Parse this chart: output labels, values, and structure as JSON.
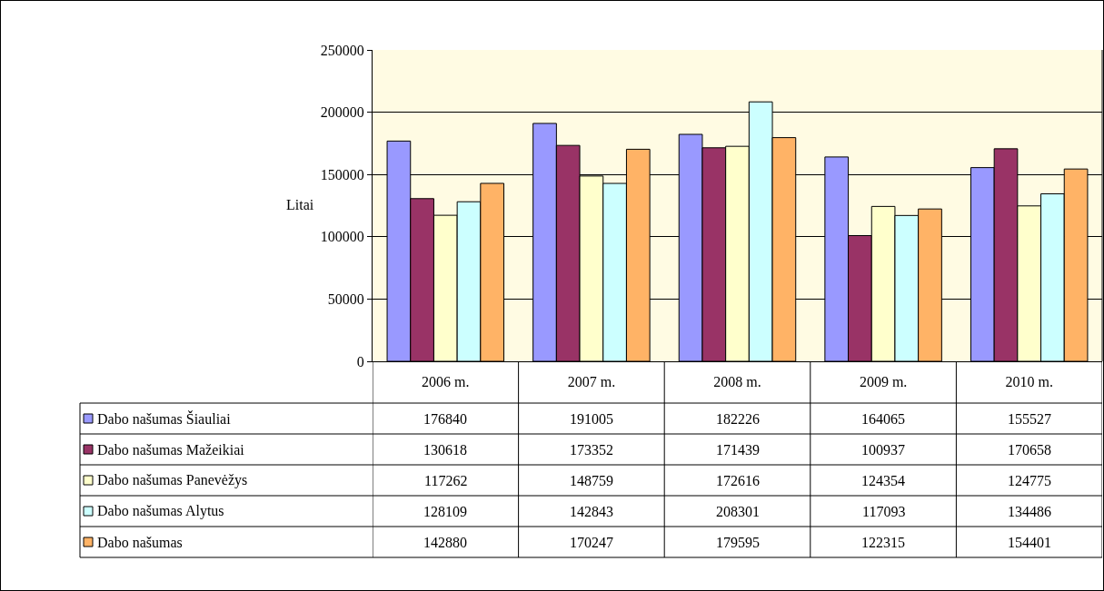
{
  "chart_data": {
    "type": "bar",
    "ylabel": "Litai",
    "categories": [
      "2006 m.",
      "2007 m.",
      "2008 m.",
      "2009 m.",
      "2010 m."
    ],
    "series": [
      {
        "name": "Dabo našumas Šiauliai",
        "color": "#9999ff",
        "values": [
          176840,
          191005,
          182226,
          164065,
          155527
        ]
      },
      {
        "name": "Dabo našumas Mažeikiai",
        "color": "#993366",
        "values": [
          130618,
          173352,
          171439,
          100937,
          170658
        ]
      },
      {
        "name": "Dabo našumas Panevėžys",
        "color": "#ffffcc",
        "values": [
          117262,
          148759,
          172616,
          124354,
          124775
        ]
      },
      {
        "name": "Dabo našumas Alytus",
        "color": "#ccffff",
        "values": [
          128109,
          142843,
          208301,
          117093,
          134486
        ]
      },
      {
        "name": "Dabo našumas",
        "color": "#ffb366",
        "values": [
          142880,
          170247,
          179595,
          122315,
          154401
        ]
      }
    ],
    "ylim": [
      0,
      250000
    ],
    "yticks": [
      0,
      50000,
      100000,
      150000,
      200000,
      250000
    ],
    "grid": "y",
    "legend": "bottom",
    "data_labels": true
  }
}
